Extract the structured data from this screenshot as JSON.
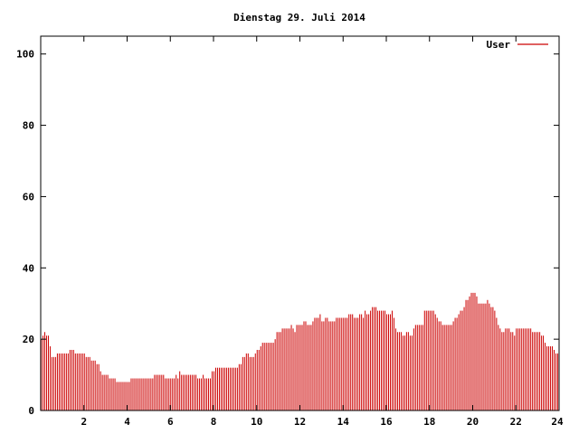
{
  "chart_data": {
    "type": "bar",
    "title": "Dienstag 29. Juli 2014",
    "xlabel": "",
    "ylabel": "",
    "xlim": [
      0,
      24
    ],
    "ylim": [
      0,
      105
    ],
    "x_ticks": [
      2,
      4,
      6,
      8,
      10,
      12,
      14,
      16,
      18,
      20,
      22,
      24
    ],
    "y_ticks": [
      0,
      20,
      40,
      60,
      80,
      100
    ],
    "grid": false,
    "legend_position": "top-right",
    "color": "#cc0000",
    "series": [
      {
        "name": "User",
        "interval_minutes": 5,
        "values": [
          20,
          21,
          22,
          21,
          21,
          18,
          15,
          15,
          15,
          16,
          16,
          16,
          16,
          16,
          16,
          16,
          17,
          17,
          17,
          16,
          16,
          16,
          16,
          16,
          16,
          15,
          15,
          15,
          14,
          14,
          14,
          13,
          13,
          11,
          10,
          10,
          10,
          10,
          9,
          9,
          9,
          9,
          8,
          8,
          8,
          8,
          8,
          8,
          8,
          8,
          9,
          9,
          9,
          9,
          9,
          9,
          9,
          9,
          9,
          9,
          9,
          9,
          9,
          10,
          10,
          10,
          10,
          10,
          10,
          9,
          9,
          9,
          9,
          9,
          9,
          10,
          9,
          11,
          10,
          10,
          10,
          10,
          10,
          10,
          10,
          10,
          10,
          9,
          9,
          9,
          10,
          9,
          9,
          9,
          9,
          11,
          11,
          12,
          12,
          12,
          12,
          12,
          12,
          12,
          12,
          12,
          12,
          12,
          12,
          12,
          13,
          13,
          15,
          15,
          16,
          16,
          15,
          15,
          15,
          16,
          17,
          17,
          18,
          19,
          19,
          19,
          19,
          19,
          19,
          19,
          20,
          22,
          22,
          22,
          23,
          23,
          23,
          23,
          23,
          24,
          23,
          22,
          24,
          24,
          24,
          24,
          25,
          25,
          24,
          24,
          24,
          25,
          26,
          26,
          26,
          27,
          25,
          25,
          26,
          26,
          25,
          25,
          25,
          25,
          26,
          26,
          26,
          26,
          26,
          26,
          26,
          27,
          27,
          27,
          26,
          26,
          26,
          27,
          27,
          26,
          28,
          27,
          27,
          28,
          29,
          29,
          29,
          28,
          28,
          28,
          28,
          28,
          27,
          27,
          27,
          28,
          26,
          23,
          22,
          22,
          22,
          21,
          21,
          22,
          22,
          21,
          21,
          23,
          24,
          24,
          24,
          24,
          24,
          28,
          28,
          28,
          28,
          28,
          28,
          27,
          26,
          25,
          25,
          24,
          24,
          24,
          24,
          24,
          24,
          25,
          26,
          26,
          27,
          28,
          28,
          29,
          31,
          31,
          32,
          33,
          33,
          33,
          32,
          30,
          30,
          30,
          30,
          30,
          31,
          30,
          29,
          29,
          28,
          26,
          24,
          23,
          22,
          22,
          23,
          23,
          23,
          22,
          22,
          21,
          23,
          23,
          23,
          23,
          23,
          23,
          23,
          23,
          23,
          22,
          22,
          22,
          22,
          22,
          21,
          21,
          19,
          18,
          18,
          18,
          18,
          17,
          16,
          16
        ]
      }
    ]
  }
}
